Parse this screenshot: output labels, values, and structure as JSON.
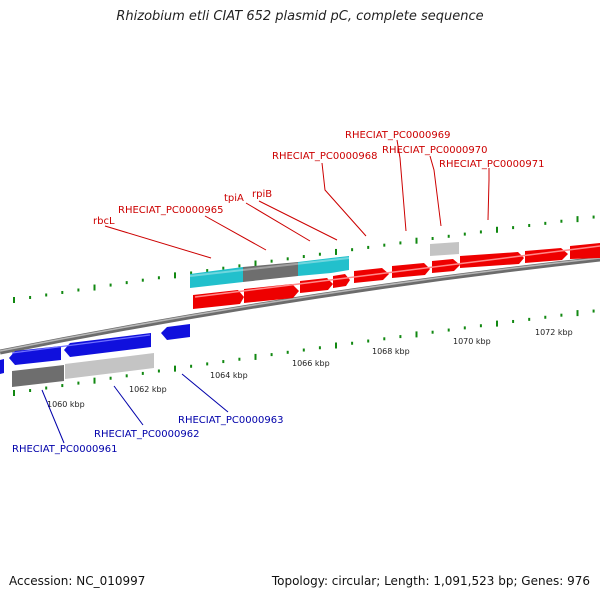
{
  "title": "Rhizobium etli CIAT 652 plasmid pC, complete sequence",
  "accession": "Accession: NC_010997",
  "summary": "Topology: circular; Length: 1,091,523 bp; Genes: 976",
  "colors": {
    "forward_gene": "#ee0000",
    "reverse_gene": "#1010dd",
    "cyan_feature": "#22c0cc",
    "dark_feature": "#707070",
    "light_feature": "#c4c4c4",
    "backbone": "#888888",
    "tick": "#118811",
    "label_red": "#cc0000",
    "label_blue": "#0000aa"
  },
  "scale_labels": [
    "1060 kbp",
    "1062 kbp",
    "1064 kbp",
    "1066 kbp",
    "1068 kbp",
    "1070 kbp",
    "1072 kbp"
  ],
  "forward_labels": [
    "rbcL",
    "RHECIAT_PC0000965",
    "tpiA",
    "rpiB",
    "RHECIAT_PC0000968",
    "RHECIAT_PC0000969",
    "RHECIAT_PC0000970",
    "RHECIAT_PC0000971"
  ],
  "reverse_labels": [
    "RHECIAT_PC0000963",
    "RHECIAT_PC0000962",
    "RHECIAT_PC0000961"
  ]
}
